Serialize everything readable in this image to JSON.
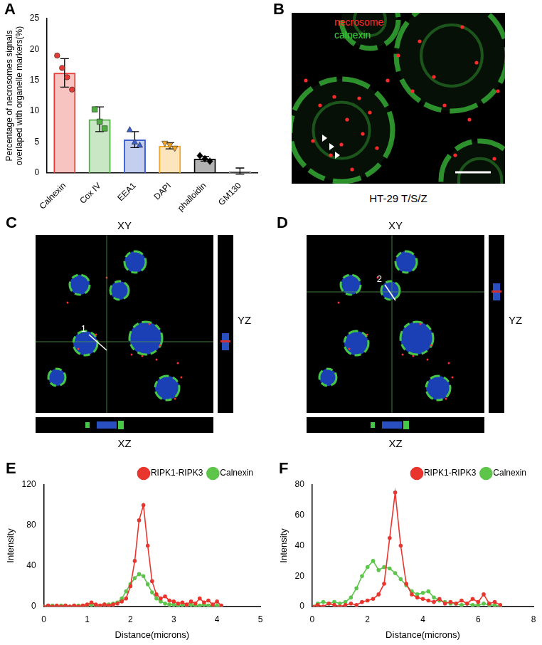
{
  "chart_data": [
    {
      "type": "bar",
      "title": "A",
      "categories": [
        "Calnexin",
        "Cox IV",
        "EEA1",
        "DAPI",
        "phalloidin",
        "GM130"
      ],
      "values": [
        16.2,
        8.7,
        5.4,
        4.4,
        2.3,
        0.3
      ],
      "errors": [
        2.3,
        2.0,
        1.3,
        0.5,
        0.4,
        0.5
      ],
      "points": [
        [
          19.0,
          17.0,
          15.5,
          13.5
        ],
        [
          10.3,
          8.3,
          7.2
        ],
        [
          7.0,
          5.0,
          4.5
        ],
        [
          4.8,
          4.5,
          4.0
        ],
        [
          2.8,
          2.3,
          1.9
        ],
        []
      ],
      "colors": [
        "#e63b34",
        "#4caf3e",
        "#3a5fcd",
        "#f5a623",
        "#000000",
        "#9e9e9e"
      ],
      "marker": [
        "circle",
        "square",
        "triangle",
        "triangle-down",
        "diamond",
        "none"
      ],
      "ylabel": [
        "Percentage of necrosomes signals",
        "overlaped with organelle markers(%)"
      ],
      "ylim": [
        0,
        25
      ],
      "yticks": [
        0,
        5,
        10,
        15,
        20,
        25
      ],
      "grid": false
    },
    {
      "type": "line",
      "title": "E",
      "x": [
        0,
        0.1,
        0.2,
        0.3,
        0.4,
        0.5,
        0.6,
        0.7,
        0.8,
        0.9,
        1.0,
        1.1,
        1.2,
        1.3,
        1.4,
        1.5,
        1.6,
        1.7,
        1.8,
        1.9,
        2.0,
        2.1,
        2.2,
        2.3,
        2.4,
        2.5,
        2.6,
        2.7,
        2.8,
        2.9,
        3.0,
        3.1,
        3.2,
        3.3,
        3.4,
        3.5,
        3.6,
        3.7,
        3.8,
        3.9,
        4.0,
        4.1
      ],
      "series": [
        {
          "name": "RIPK1-RIPK3",
          "color": "#e8352e",
          "marker": "circle",
          "values": [
            0,
            1,
            0,
            1,
            0,
            1,
            0,
            1,
            0,
            1,
            2,
            4,
            2,
            1,
            2,
            1,
            2,
            3,
            5,
            8,
            20,
            45,
            85,
            100,
            60,
            25,
            12,
            8,
            10,
            6,
            5,
            3,
            4,
            2,
            5,
            3,
            8,
            4,
            6,
            2,
            5,
            1
          ]
        },
        {
          "name": "Calnexin",
          "color": "#5cc54a",
          "marker": "circle",
          "values": [
            0,
            1,
            1,
            0,
            1,
            1,
            0,
            1,
            1,
            1,
            1,
            2,
            1,
            1,
            2,
            2,
            3,
            4,
            8,
            15,
            22,
            28,
            32,
            30,
            22,
            14,
            8,
            5,
            3,
            2,
            2,
            1,
            2,
            1,
            2,
            1,
            1,
            2,
            1,
            1,
            1,
            0
          ]
        }
      ],
      "xlabel": "Distance(microns)",
      "ylabel": "Intensity",
      "xlim": [
        0,
        5
      ],
      "xticks": [
        0,
        1,
        2,
        3,
        4,
        5
      ],
      "ylim": [
        0,
        120
      ],
      "yticks": [
        0,
        40,
        80,
        120
      ],
      "legend": "top-right",
      "grid": false
    },
    {
      "type": "line",
      "title": "F",
      "x": [
        0,
        0.2,
        0.4,
        0.6,
        0.8,
        1.0,
        1.2,
        1.4,
        1.6,
        1.8,
        2.0,
        2.2,
        2.4,
        2.6,
        2.8,
        3.0,
        3.2,
        3.4,
        3.6,
        3.8,
        4.0,
        4.2,
        4.4,
        4.6,
        4.8,
        5.0,
        5.2,
        5.4,
        5.6,
        5.8,
        6.0,
        6.2,
        6.4,
        6.6,
        6.8
      ],
      "series": [
        {
          "name": "RIPK1-RIPK3",
          "color": "#e8352e",
          "marker": "circle",
          "values": [
            0,
            1,
            0,
            2,
            1,
            0,
            1,
            2,
            1,
            3,
            4,
            5,
            8,
            15,
            45,
            75,
            40,
            15,
            8,
            6,
            5,
            4,
            3,
            5,
            2,
            3,
            2,
            4,
            2,
            5,
            3,
            8,
            2,
            3,
            1
          ]
        },
        {
          "name": "Calnexin",
          "color": "#5cc54a",
          "marker": "circle",
          "values": [
            0,
            2,
            3,
            2,
            3,
            2,
            3,
            6,
            12,
            20,
            26,
            30,
            24,
            26,
            25,
            22,
            18,
            14,
            10,
            8,
            9,
            10,
            6,
            4,
            3,
            2,
            2,
            1,
            2,
            1,
            1,
            2,
            1,
            1,
            0
          ]
        }
      ],
      "xlabel": "Distance(microns)",
      "ylabel": "Intensity",
      "xlim": [
        0,
        8
      ],
      "xticks": [
        0,
        2,
        4,
        6,
        8
      ],
      "ylim": [
        0,
        80
      ],
      "yticks": [
        0,
        20,
        40,
        60,
        80
      ],
      "legend": "top-right",
      "grid": false
    }
  ],
  "images": [
    {
      "title": "B",
      "labels": [
        {
          "text": "necrosome",
          "color": "#ff2a2a"
        },
        {
          "text": "calnexin",
          "color": "#3cd43c"
        }
      ],
      "caption": "HT-29 T/S/Z"
    },
    {
      "title": "C",
      "views": [
        "XY",
        "YZ",
        "XZ"
      ],
      "line_label": "1"
    },
    {
      "title": "D",
      "views": [
        "XY",
        "YZ",
        "XZ"
      ],
      "line_label": "2"
    }
  ]
}
